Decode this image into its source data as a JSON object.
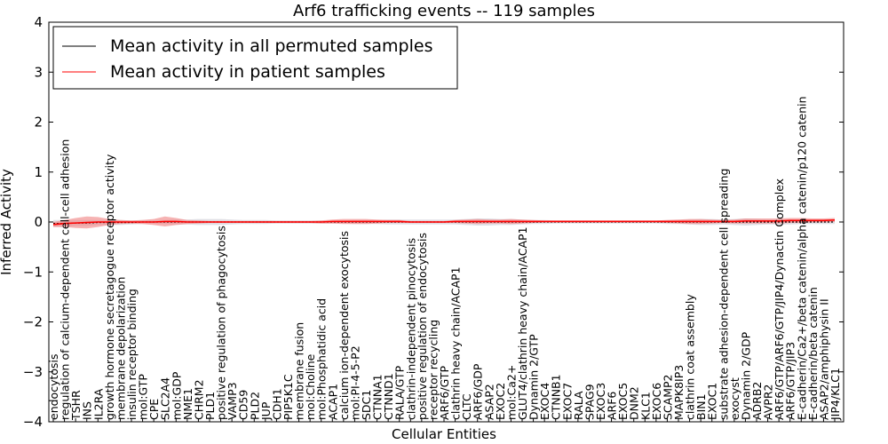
{
  "chart_data": {
    "type": "line",
    "title": "Arf6 trafficking events -- 119 samples",
    "xlabel": "Cellular Entities",
    "ylabel": "Inferred Activity",
    "ylim": [
      -4,
      4
    ],
    "yticks": [
      -4,
      -3,
      -2,
      -1,
      0,
      1,
      2,
      3,
      4
    ],
    "ytick_labels": [
      "−4",
      "−3",
      "−2",
      "−1",
      "0",
      "1",
      "2",
      "3",
      "4"
    ],
    "legend_position": "top-left",
    "grid": false,
    "categories": [
      "endocytosis",
      "regulation of calcium-dependent cell-cell adhesion",
      "TSHR",
      "INS",
      "IL2RA",
      "growth hormone secretagogue receptor activity",
      "membrane depolarization",
      "insulin receptor binding",
      "mol:GTP",
      "CPE",
      "SLC2A4",
      "mol:GDP",
      "NME1",
      "CHRM2",
      "PLD1",
      "positive regulation of phagocytosis",
      "VAMP3",
      "CD59",
      "PLD2",
      "JUP",
      "CDH1",
      "PIP5K1C",
      "membrane fusion",
      "mol:Choline",
      "mol:Phosphatidic acid",
      "ACAP1",
      "calcium ion-dependent exocytosis",
      "mol:PI-4-5-P2",
      "SDC1",
      "CTNNA1",
      "CTNND1",
      "RALA/GTP",
      "clathrin-independent pinocytosis",
      "positive regulation of endocytosis",
      "receptor recycling",
      "ARF6/GTP",
      "clathrin heavy chain/ACAP1",
      "CLTC",
      "ARF6/GDP",
      "ASAP2",
      "EXOC2",
      "mol:Ca2+",
      "GLUT4/clathrin heavy chain/ACAP1",
      "Dynamin 2/GTP",
      "EXOC4",
      "CTNNB1",
      "EXOC7",
      "RALA",
      "SPAG9",
      "EXOC3",
      "ARF6",
      "EXOC5",
      "DNM2",
      "KLC1",
      "EXOC6",
      "SCAMP2",
      "MAPK8IP3",
      "clathrin coat assembly",
      "BIN1",
      "EXOC1",
      "substrate adhesion-dependent cell spreading",
      "exocyst",
      "Dynamin 2/GDP",
      "ADRB2",
      "AVPR2",
      "ARF6/GTP/ARF6/GTP/JIP4/Dynactin Complex",
      "ARF6/GTP/JIP3",
      "E-cadherin/Ca2+/beta catenin/alpha catenin/p120 catenin",
      "E-cadherin/beta catenin",
      "ASAP2/amphiphysin II",
      "JIP4/KLC1"
    ],
    "series": [
      {
        "name": "Mean activity in all permuted samples",
        "color": "#000000",
        "values": [
          -0.03,
          -0.03,
          -0.02,
          -0.02,
          -0.01,
          -0.01,
          -0.01,
          -0.01,
          0,
          0,
          0,
          0,
          0,
          0,
          0,
          0,
          0,
          0,
          0,
          0,
          0,
          0,
          0,
          0,
          0,
          0,
          0,
          0,
          0,
          0,
          0,
          0,
          0,
          0,
          0,
          0,
          0,
          0,
          0,
          0,
          0,
          0,
          0,
          0,
          0,
          0,
          0,
          0,
          0,
          0,
          0,
          0,
          0,
          0,
          0,
          0,
          0,
          0,
          0,
          0,
          0,
          0,
          0,
          0,
          0,
          0,
          0,
          0,
          0,
          0,
          0
        ],
        "band": [
          0.07,
          0.07,
          0.06,
          0.06,
          0.05,
          0.05,
          0.05,
          0.04,
          0.04,
          0.04,
          0.04,
          0.05,
          0.05,
          0.06,
          0.06,
          0.06,
          0.05,
          0.04,
          0.04,
          0.04,
          0.03,
          0.03,
          0.03,
          0.03,
          0.03,
          0.03,
          0.03,
          0.04,
          0.04,
          0.04,
          0.05,
          0.05,
          0.05,
          0.05,
          0.05,
          0.05,
          0.05,
          0.06,
          0.07,
          0.07,
          0.06,
          0.06,
          0.05,
          0.04,
          0.04,
          0.03,
          0.03,
          0.03,
          0.03,
          0.03,
          0.03,
          0.03,
          0.03,
          0.03,
          0.03,
          0.04,
          0.04,
          0.05,
          0.06,
          0.06,
          0.05,
          0.06,
          0.07,
          0.06,
          0.05,
          0.05,
          0.05,
          0.04,
          0.04,
          0.04,
          0.04
        ]
      },
      {
        "name": "Mean activity in patient samples",
        "color": "#ff0000",
        "values": [
          -0.05,
          -0.03,
          -0.02,
          -0.01,
          0,
          0,
          0,
          0,
          0,
          0,
          0.01,
          0.01,
          0,
          0,
          0,
          0,
          0,
          0,
          0,
          0,
          0,
          0,
          0,
          0,
          0,
          0.01,
          0.01,
          0.01,
          0.01,
          0.01,
          0.01,
          0.01,
          0,
          0,
          0,
          0,
          0.01,
          0.01,
          0.01,
          0.01,
          0.01,
          0.01,
          0.01,
          0.01,
          0.01,
          0.01,
          0.01,
          0.01,
          0.01,
          0.01,
          0.01,
          0.01,
          0.01,
          0.01,
          0.01,
          0.01,
          0.01,
          0.01,
          0.01,
          0.01,
          0.01,
          0.01,
          0.02,
          0.02,
          0.02,
          0.02,
          0.03,
          0.03,
          0.03,
          0.03,
          0.04
        ],
        "band": [
          0.05,
          0.07,
          0.1,
          0.12,
          0.1,
          0.06,
          0.04,
          0.03,
          0.04,
          0.06,
          0.1,
          0.07,
          0.04,
          0.03,
          0.02,
          0.02,
          0.02,
          0.02,
          0.02,
          0.02,
          0.02,
          0.02,
          0.02,
          0.02,
          0.03,
          0.04,
          0.05,
          0.05,
          0.05,
          0.04,
          0.03,
          0.03,
          0.02,
          0.02,
          0.02,
          0.02,
          0.03,
          0.04,
          0.05,
          0.04,
          0.04,
          0.05,
          0.04,
          0.03,
          0.02,
          0.02,
          0.02,
          0.02,
          0.02,
          0.02,
          0.02,
          0.02,
          0.02,
          0.02,
          0.02,
          0.03,
          0.04,
          0.05,
          0.05,
          0.04,
          0.03,
          0.04,
          0.05,
          0.05,
          0.05,
          0.05,
          0.05,
          0.05,
          0.04,
          0.04,
          0.04
        ]
      }
    ]
  }
}
